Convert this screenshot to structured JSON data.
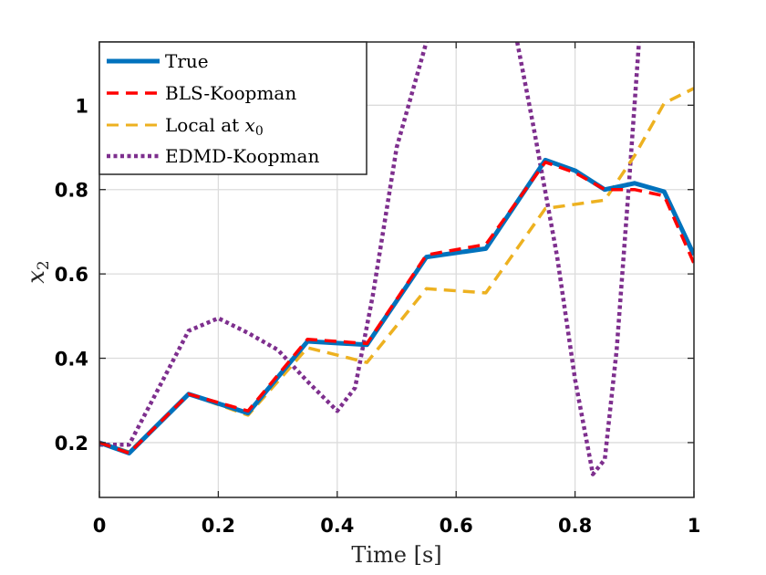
{
  "chart_data": {
    "type": "line",
    "xlabel": "Time [s]",
    "ylabel": "x",
    "ylabel_subscript": "2",
    "xlim": [
      0,
      1
    ],
    "ylim": [
      0.07,
      1.15
    ],
    "xticks": [
      0,
      0.2,
      0.4,
      0.6,
      0.8,
      1
    ],
    "xtick_labels": [
      "0",
      "0.2",
      "0.4",
      "0.6",
      "0.8",
      "1"
    ],
    "yticks": [
      0.2,
      0.4,
      0.6,
      0.8,
      1
    ],
    "ytick_labels": [
      "0.2",
      "0.4",
      "0.6",
      "0.8",
      "1"
    ],
    "grid": true,
    "legend_position": "top-left",
    "series": [
      {
        "name": "True",
        "color": "#0072BD",
        "style": "solid",
        "points": [
          [
            0,
            0.2
          ],
          [
            0.05,
            0.175
          ],
          [
            0.15,
            0.315
          ],
          [
            0.25,
            0.27
          ],
          [
            0.35,
            0.44
          ],
          [
            0.45,
            0.432
          ],
          [
            0.55,
            0.64
          ],
          [
            0.65,
            0.66
          ],
          [
            0.75,
            0.87
          ],
          [
            0.8,
            0.845
          ],
          [
            0.85,
            0.8
          ],
          [
            0.9,
            0.815
          ],
          [
            0.95,
            0.795
          ],
          [
            1.0,
            0.645
          ]
        ]
      },
      {
        "name": "BLS-Koopman",
        "color": "#FF0000",
        "style": "dashed",
        "points": [
          [
            0,
            0.2
          ],
          [
            0.05,
            0.175
          ],
          [
            0.15,
            0.315
          ],
          [
            0.25,
            0.275
          ],
          [
            0.35,
            0.445
          ],
          [
            0.45,
            0.435
          ],
          [
            0.55,
            0.645
          ],
          [
            0.65,
            0.67
          ],
          [
            0.75,
            0.865
          ],
          [
            0.8,
            0.84
          ],
          [
            0.85,
            0.8
          ],
          [
            0.9,
            0.8
          ],
          [
            0.95,
            0.785
          ],
          [
            1.0,
            0.625
          ]
        ]
      },
      {
        "name": "Local at ",
        "name_math": "x",
        "name_math_subscript": "0",
        "color": "#EDB120",
        "style": "dashed",
        "points": [
          [
            0,
            0.2
          ],
          [
            0.05,
            0.178
          ],
          [
            0.15,
            0.315
          ],
          [
            0.25,
            0.265
          ],
          [
            0.35,
            0.425
          ],
          [
            0.45,
            0.39
          ],
          [
            0.55,
            0.565
          ],
          [
            0.65,
            0.555
          ],
          [
            0.75,
            0.755
          ],
          [
            0.85,
            0.775
          ],
          [
            0.9,
            0.88
          ],
          [
            0.95,
            1.005
          ],
          [
            1.0,
            1.04
          ]
        ]
      },
      {
        "name": "EDMD-Koopman",
        "color": "#7E2F8E",
        "style": "dotted",
        "points": [
          [
            0,
            0.195
          ],
          [
            0.05,
            0.195
          ],
          [
            0.1,
            0.33
          ],
          [
            0.15,
            0.465
          ],
          [
            0.2,
            0.495
          ],
          [
            0.25,
            0.46
          ],
          [
            0.3,
            0.42
          ],
          [
            0.35,
            0.345
          ],
          [
            0.4,
            0.275
          ],
          [
            0.43,
            0.33
          ],
          [
            0.46,
            0.55
          ],
          [
            0.5,
            0.9
          ],
          [
            0.54,
            1.1
          ],
          [
            0.56,
            1.2
          ],
          [
            0.62,
            1.3
          ],
          [
            0.68,
            1.3
          ],
          [
            0.7,
            1.17
          ],
          [
            0.73,
            0.95
          ],
          [
            0.77,
            0.64
          ],
          [
            0.8,
            0.35
          ],
          [
            0.83,
            0.125
          ],
          [
            0.85,
            0.16
          ],
          [
            0.87,
            0.42
          ],
          [
            0.89,
            0.8
          ],
          [
            0.905,
            1.1
          ],
          [
            0.91,
            1.2
          ],
          [
            0.93,
            1.4
          ]
        ]
      }
    ]
  }
}
